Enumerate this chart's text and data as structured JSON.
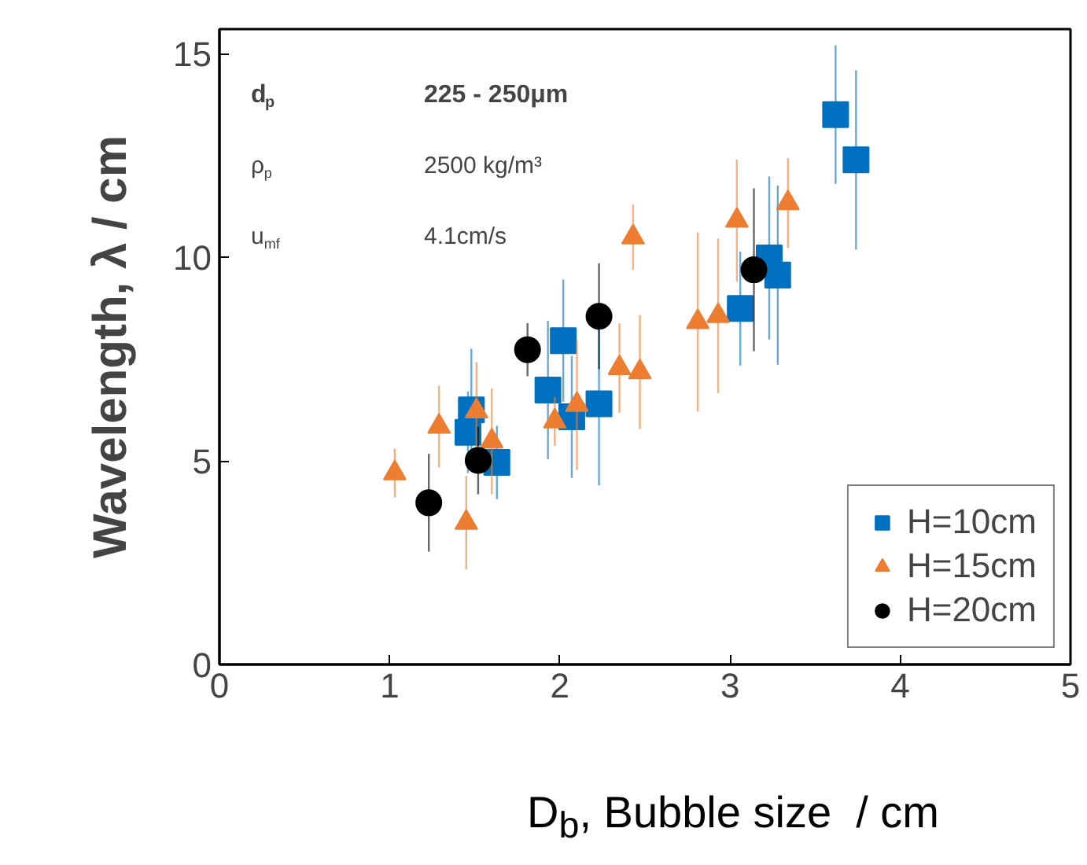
{
  "chart_data": {
    "type": "scatter",
    "xlabel": "D$_{b}$, Bubble size  / cm",
    "ylabel": "Wavelength, λ / cm",
    "xlim": [
      0,
      5
    ],
    "ylim": [
      0,
      15.6
    ],
    "xticks": [
      0,
      1,
      2,
      3,
      4,
      5
    ],
    "yticks": [
      0,
      5,
      10,
      15
    ],
    "grid": false,
    "legend": "bottom right",
    "annotations": [
      "d$_{p}$",
      "225 - 250μm",
      "ρ$_{p}$",
      "2500 kg/m³",
      "u$_{mf}$",
      "4.1cm/s"
    ],
    "series": [
      {
        "name": "H=10cm",
        "color": "#0070c0",
        "marker": "square",
        "x": [
          1.48,
          1.46,
          1.63,
          1.93,
          2.02,
          2.07,
          2.23,
          3.06,
          3.23,
          3.28,
          3.62,
          3.74
        ],
        "values": [
          6.25,
          5.7,
          4.96,
          6.74,
          7.95,
          6.08,
          6.4,
          8.74,
          9.98,
          9.56,
          13.5,
          12.39
        ],
        "errors": [
          1.5,
          1.0,
          0.9,
          1.7,
          1.5,
          1.5,
          2.0,
          1.4,
          2.0,
          2.2,
          1.7,
          2.2
        ]
      },
      {
        "name": "H=15cm",
        "color": "#ed7d31",
        "marker": "triangle",
        "x": [
          1.03,
          1.29,
          1.45,
          1.51,
          1.6,
          1.97,
          2.1,
          2.35,
          2.43,
          2.47,
          2.81,
          2.93,
          3.04,
          3.34
        ],
        "values": [
          4.7,
          5.84,
          3.48,
          6.22,
          5.48,
          5.97,
          6.38,
          7.28,
          10.49,
          7.18,
          8.41,
          8.56,
          10.9,
          11.33
        ],
        "errors": [
          0.6,
          1.0,
          1.15,
          1.2,
          1.3,
          0.6,
          1.6,
          1.1,
          0.8,
          1.4,
          2.2,
          1.9,
          1.5,
          1.1
        ]
      },
      {
        "name": "H=20cm",
        "color": "#000000",
        "marker": "circle",
        "x": [
          1.23,
          1.52,
          1.81,
          2.23,
          3.14
        ],
        "values": [
          3.97,
          5.01,
          7.73,
          8.55,
          9.69
        ],
        "errors": [
          1.2,
          0.83,
          0.65,
          1.3,
          2.0
        ]
      }
    ]
  }
}
